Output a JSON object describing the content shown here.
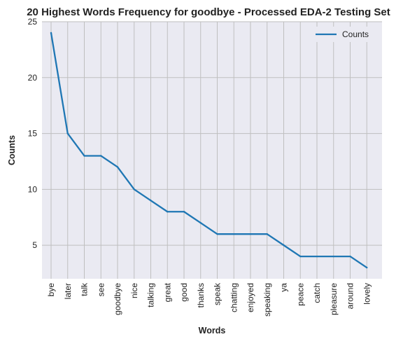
{
  "chart_data": {
    "type": "line",
    "title": "20 Highest Words Frequency for goodbye - Processed EDA-2 Testing Set",
    "xlabel": "Words",
    "ylabel": "Counts",
    "categories": [
      "bye",
      "later",
      "talk",
      "see",
      "goodbye",
      "nice",
      "talking",
      "great",
      "good",
      "thanks",
      "speak",
      "chatting",
      "enjoyed",
      "speaking",
      "ya",
      "peace",
      "catch",
      "pleasure",
      "around",
      "lovely"
    ],
    "series": [
      {
        "name": "Counts",
        "values": [
          24,
          15,
          13,
          13,
          12,
          10,
          9,
          8,
          8,
          7,
          6,
          6,
          6,
          6,
          5,
          4,
          4,
          4,
          4,
          3
        ],
        "color": "#1f77b4"
      }
    ],
    "ylim": [
      2,
      25
    ],
    "yticks": [
      5,
      10,
      15,
      20,
      25
    ],
    "grid": true,
    "legend_position": "top-right",
    "background_color": "#eaeaf2",
    "grid_color": "#bfbfbf"
  }
}
